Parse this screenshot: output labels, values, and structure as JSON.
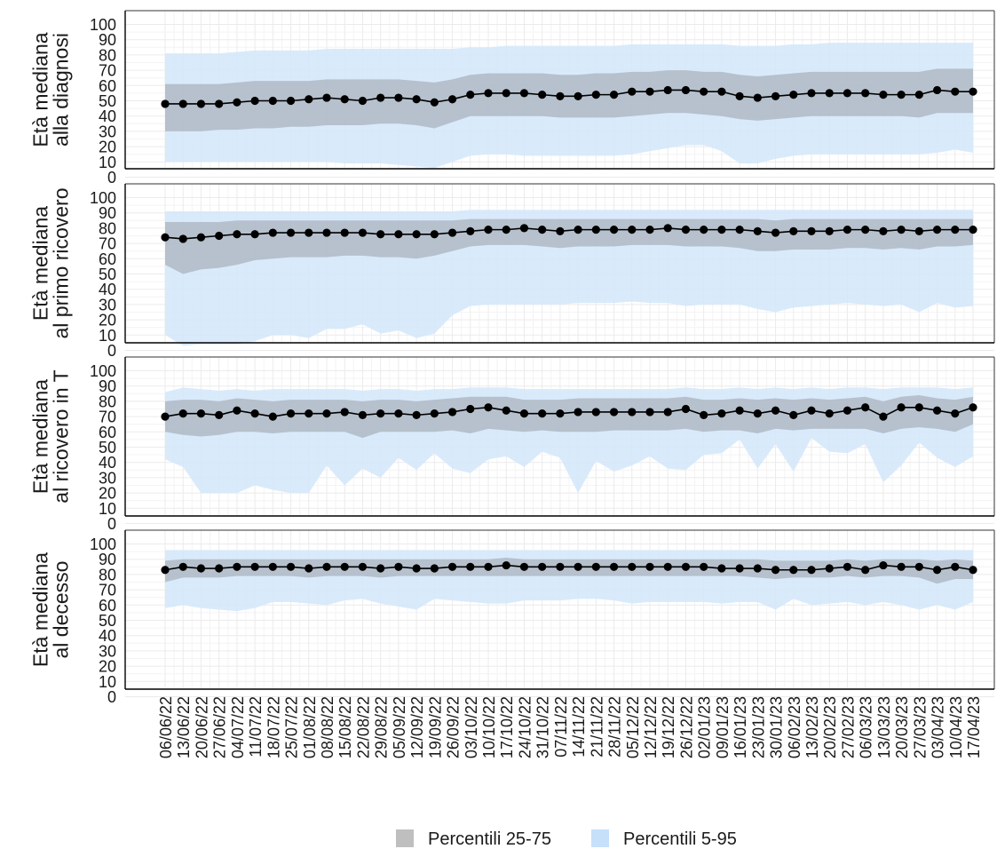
{
  "chart_data": {
    "type": "line",
    "x": [
      "06/06/22",
      "13/06/22",
      "20/06/22",
      "27/06/22",
      "04/07/22",
      "11/07/22",
      "18/07/22",
      "25/07/22",
      "01/08/22",
      "08/08/22",
      "15/08/22",
      "22/08/22",
      "29/08/22",
      "05/09/22",
      "12/09/22",
      "19/09/22",
      "26/09/22",
      "03/10/22",
      "10/10/22",
      "17/10/22",
      "24/10/22",
      "31/10/22",
      "07/11/22",
      "14/11/22",
      "21/11/22",
      "28/11/22",
      "05/12/22",
      "12/12/22",
      "19/12/22",
      "26/12/22",
      "02/01/23",
      "09/01/23",
      "16/01/23",
      "23/01/23",
      "30/01/23",
      "06/02/23",
      "13/02/23",
      "20/02/23",
      "27/02/23",
      "06/03/23",
      "13/03/23",
      "20/03/23",
      "27/03/23",
      "03/04/23",
      "10/04/23",
      "17/04/23"
    ],
    "ylim": [
      0,
      100
    ],
    "yticks": [
      0,
      10,
      20,
      30,
      40,
      50,
      60,
      70,
      80,
      90,
      100
    ],
    "grid": true,
    "legend_position": "bottom",
    "legend": [
      {
        "label": "Percentili 25-75",
        "color": "#bfbfbf"
      },
      {
        "label": "Percentili 5-95",
        "color": "#c6e0fa"
      }
    ],
    "colors": {
      "median": "#000000",
      "iqr_band": "#a9b3be",
      "p5_95_band": "#d5e8fb",
      "grid": "#ebebeb"
    },
    "panels": [
      {
        "ylabel": [
          "Età mediana",
          "alla diagnosi"
        ],
        "median": [
          48,
          48,
          48,
          48,
          49,
          50,
          50,
          50,
          51,
          52,
          51,
          50,
          52,
          52,
          51,
          49,
          51,
          54,
          55,
          55,
          55,
          54,
          53,
          53,
          54,
          54,
          56,
          56,
          57,
          57,
          56,
          56,
          53,
          52,
          53,
          54,
          55,
          55,
          55,
          55,
          54,
          54,
          54,
          57,
          56,
          56
        ],
        "p25": [
          30,
          30,
          30,
          31,
          31,
          32,
          32,
          33,
          33,
          34,
          34,
          34,
          35,
          35,
          34,
          32,
          36,
          40,
          40,
          40,
          40,
          40,
          39,
          39,
          39,
          39,
          40,
          41,
          42,
          42,
          41,
          40,
          38,
          37,
          38,
          39,
          40,
          40,
          40,
          40,
          40,
          40,
          39,
          42,
          42,
          42
        ],
        "p75": [
          61,
          61,
          61,
          61,
          62,
          63,
          63,
          63,
          63,
          64,
          64,
          64,
          64,
          64,
          63,
          62,
          64,
          67,
          68,
          68,
          68,
          68,
          67,
          67,
          68,
          68,
          69,
          69,
          70,
          70,
          69,
          69,
          67,
          66,
          67,
          68,
          69,
          69,
          69,
          69,
          69,
          69,
          69,
          71,
          71,
          71
        ],
        "p5": [
          10,
          10,
          10,
          10,
          10,
          10,
          10,
          10,
          10,
          10,
          9,
          9,
          9,
          8,
          7,
          6,
          10,
          14,
          15,
          15,
          14,
          14,
          14,
          14,
          14,
          14,
          15,
          17,
          19,
          21,
          21,
          17,
          9,
          9,
          12,
          14,
          15,
          15,
          15,
          15,
          15,
          15,
          15,
          16,
          18,
          16
        ],
        "p95": [
          81,
          81,
          81,
          81,
          82,
          83,
          83,
          83,
          83,
          84,
          84,
          84,
          84,
          84,
          84,
          84,
          84,
          85,
          85,
          86,
          86,
          86,
          86,
          86,
          86,
          86,
          87,
          87,
          87,
          87,
          87,
          87,
          86,
          86,
          86,
          87,
          87,
          88,
          88,
          88,
          88,
          88,
          88,
          88,
          88,
          88
        ]
      },
      {
        "ylabel": [
          "Età mediana",
          "al primo ricovero"
        ],
        "median": [
          74,
          73,
          74,
          75,
          76,
          76,
          77,
          77,
          77,
          77,
          77,
          77,
          76,
          76,
          76,
          76,
          77,
          78,
          79,
          79,
          80,
          79,
          78,
          79,
          79,
          79,
          79,
          79,
          80,
          79,
          79,
          79,
          79,
          78,
          77,
          78,
          78,
          78,
          79,
          79,
          78,
          79,
          78,
          79,
          79,
          79
        ],
        "p25": [
          56,
          50,
          53,
          54,
          56,
          59,
          60,
          61,
          61,
          61,
          62,
          62,
          61,
          61,
          60,
          62,
          65,
          68,
          69,
          69,
          69,
          68,
          67,
          68,
          68,
          68,
          69,
          69,
          69,
          68,
          68,
          68,
          67,
          65,
          65,
          66,
          66,
          66,
          67,
          67,
          66,
          67,
          66,
          68,
          68,
          69
        ],
        "p75": [
          84,
          84,
          84,
          84,
          85,
          85,
          85,
          85,
          85,
          85,
          85,
          85,
          85,
          85,
          85,
          85,
          85,
          86,
          86,
          86,
          86,
          86,
          86,
          86,
          86,
          86,
          86,
          86,
          86,
          86,
          86,
          86,
          86,
          86,
          85,
          86,
          86,
          86,
          86,
          86,
          86,
          86,
          86,
          86,
          86,
          86
        ],
        "p5": [
          10,
          3,
          4,
          4,
          4,
          6,
          10,
          10,
          8,
          14,
          14,
          17,
          11,
          13,
          8,
          11,
          23,
          29,
          30,
          30,
          30,
          30,
          30,
          31,
          31,
          31,
          32,
          31,
          31,
          29,
          30,
          30,
          30,
          27,
          25,
          28,
          29,
          30,
          31,
          30,
          29,
          30,
          25,
          31,
          28,
          29
        ],
        "p95": [
          91,
          91,
          91,
          91,
          91,
          91,
          91,
          91,
          91,
          91,
          91,
          91,
          91,
          91,
          91,
          91,
          91,
          92,
          92,
          92,
          92,
          92,
          92,
          92,
          92,
          92,
          92,
          92,
          92,
          92,
          92,
          92,
          92,
          92,
          92,
          92,
          92,
          92,
          92,
          92,
          92,
          92,
          92,
          92,
          92,
          92
        ]
      },
      {
        "ylabel": [
          "Età mediana",
          "al ricovero in T"
        ],
        "median": [
          70,
          72,
          72,
          71,
          74,
          72,
          70,
          72,
          72,
          72,
          73,
          71,
          72,
          72,
          71,
          72,
          73,
          75,
          76,
          74,
          72,
          72,
          72,
          73,
          73,
          73,
          73,
          73,
          73,
          75,
          71,
          72,
          74,
          72,
          74,
          71,
          74,
          72,
          74,
          76,
          70,
          76,
          76,
          74,
          72,
          76
        ],
        "p25": [
          60,
          58,
          57,
          58,
          60,
          60,
          59,
          60,
          60,
          60,
          60,
          56,
          60,
          60,
          60,
          60,
          61,
          59,
          62,
          61,
          60,
          61,
          60,
          60,
          60,
          61,
          61,
          61,
          61,
          62,
          60,
          61,
          61,
          59,
          62,
          61,
          62,
          62,
          62,
          62,
          59,
          62,
          63,
          62,
          60,
          65
        ],
        "p75": [
          80,
          81,
          81,
          80,
          82,
          81,
          80,
          81,
          81,
          81,
          81,
          80,
          81,
          81,
          80,
          81,
          82,
          83,
          83,
          83,
          81,
          81,
          81,
          82,
          82,
          82,
          82,
          82,
          82,
          83,
          81,
          81,
          82,
          81,
          82,
          81,
          82,
          81,
          82,
          83,
          80,
          83,
          84,
          82,
          81,
          83
        ],
        "p5": [
          42,
          37,
          20,
          20,
          20,
          25,
          22,
          20,
          20,
          38,
          25,
          36,
          30,
          43,
          35,
          46,
          36,
          33,
          42,
          44,
          37,
          47,
          43,
          20,
          41,
          34,
          38,
          44,
          36,
          35,
          45,
          46,
          55,
          36,
          52,
          34,
          56,
          47,
          46,
          52,
          27,
          38,
          53,
          43,
          37,
          44
        ],
        "p95": [
          86,
          89,
          88,
          87,
          88,
          87,
          88,
          88,
          88,
          88,
          88,
          87,
          88,
          88,
          87,
          88,
          88,
          89,
          89,
          89,
          88,
          88,
          88,
          88,
          88,
          88,
          88,
          88,
          88,
          89,
          88,
          88,
          89,
          88,
          89,
          88,
          89,
          88,
          89,
          89,
          88,
          89,
          89,
          89,
          88,
          89
        ]
      },
      {
        "ylabel": [
          "Età mediana",
          "al decesso"
        ],
        "median": [
          83,
          85,
          84,
          84,
          85,
          85,
          85,
          85,
          84,
          85,
          85,
          85,
          84,
          85,
          84,
          84,
          85,
          85,
          85,
          86,
          85,
          85,
          85,
          85,
          85,
          85,
          85,
          85,
          85,
          85,
          85,
          84,
          84,
          84,
          83,
          83,
          83,
          84,
          85,
          83,
          86,
          85,
          85,
          83,
          85,
          83
        ],
        "p25": [
          75,
          78,
          78,
          78,
          79,
          79,
          79,
          79,
          78,
          79,
          79,
          79,
          78,
          79,
          79,
          79,
          79,
          79,
          79,
          79,
          79,
          79,
          79,
          79,
          79,
          79,
          79,
          79,
          79,
          79,
          79,
          79,
          79,
          78,
          77,
          78,
          78,
          78,
          79,
          78,
          79,
          79,
          78,
          74,
          77,
          77
        ],
        "p75": [
          89,
          90,
          90,
          90,
          90,
          90,
          90,
          90,
          90,
          90,
          90,
          90,
          90,
          90,
          90,
          90,
          90,
          90,
          90,
          91,
          90,
          90,
          90,
          90,
          90,
          90,
          90,
          90,
          90,
          90,
          90,
          90,
          90,
          90,
          89,
          89,
          89,
          89,
          90,
          89,
          90,
          90,
          90,
          89,
          90,
          89
        ],
        "p5": [
          58,
          60,
          58,
          57,
          56,
          58,
          62,
          62,
          61,
          60,
          63,
          64,
          61,
          59,
          57,
          64,
          63,
          62,
          61,
          61,
          63,
          63,
          63,
          64,
          64,
          63,
          61,
          62,
          62,
          62,
          62,
          61,
          62,
          62,
          57,
          64,
          60,
          61,
          62,
          60,
          62,
          60,
          57,
          60,
          57,
          62
        ],
        "p95": [
          96,
          96,
          96,
          96,
          96,
          96,
          96,
          96,
          96,
          96,
          96,
          96,
          96,
          96,
          96,
          96,
          96,
          96,
          96,
          96,
          96,
          96,
          96,
          96,
          96,
          96,
          96,
          96,
          96,
          96,
          96,
          96,
          96,
          96,
          96,
          96,
          96,
          96,
          96,
          96,
          96,
          96,
          96,
          96,
          96,
          96
        ]
      }
    ]
  }
}
